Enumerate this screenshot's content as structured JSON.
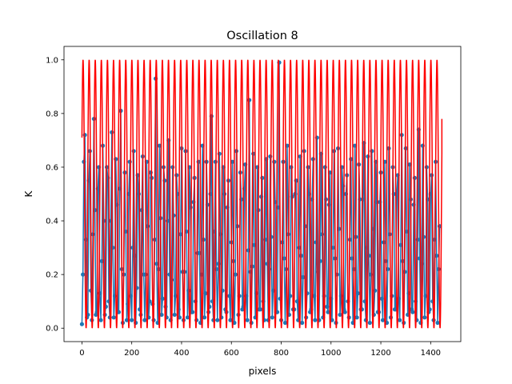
{
  "chart_data": {
    "type": "line",
    "title": "Oscillation 8",
    "xlabel": "pixels",
    "ylabel": "K",
    "xlim": [
      -72,
      1521
    ],
    "ylim": [
      -0.05,
      1.05
    ],
    "xticks": [
      0,
      200,
      400,
      600,
      800,
      1000,
      1200,
      1400
    ],
    "xtick_labels": [
      "0",
      "200",
      "400",
      "600",
      "800",
      "1000",
      "1200",
      "1400"
    ],
    "yticks": [
      0.0,
      0.2,
      0.4,
      0.6,
      0.8,
      1.0
    ],
    "ytick_labels": [
      "0.0",
      "0.2",
      "0.4",
      "0.6",
      "0.8",
      "1.0"
    ],
    "grid": false,
    "series": [
      {
        "role": "measured",
        "style": "line-with-markers",
        "color": "#1f77b4",
        "x_start": 0,
        "x_step": 4,
        "values": [
          0.015,
          0.2,
          0.62,
          0.72,
          0.33,
          0.04,
          0.05,
          0.55,
          0.66,
          0.14,
          0.03,
          0.35,
          0.78,
          0.44,
          0.05,
          0.06,
          0.52,
          0.6,
          0.13,
          0.03,
          0.25,
          0.68,
          0.4,
          0.05,
          0.08,
          0.6,
          0.56,
          0.1,
          0.04,
          0.4,
          0.73,
          0.3,
          0.04,
          0.12,
          0.63,
          0.46,
          0.06,
          0.06,
          0.52,
          0.81,
          0.22,
          0.02,
          0.2,
          0.58,
          0.36,
          0.03,
          0.09,
          0.5,
          0.62,
          0.12,
          0.03,
          0.3,
          0.66,
          0.27,
          0.02,
          0.15,
          0.57,
          0.5,
          0.07,
          0.05,
          0.44,
          0.64,
          0.2,
          0.03,
          0.2,
          0.62,
          0.38,
          0.04,
          0.1,
          0.58,
          0.56,
          0.09,
          0.03,
          0.33,
          0.93,
          0.24,
          0.02,
          0.22,
          0.68,
          0.41,
          0.05,
          0.11,
          0.6,
          0.55,
          0.08,
          0.04,
          0.4,
          0.7,
          0.2,
          0.03,
          0.18,
          0.6,
          0.42,
          0.05,
          0.12,
          0.57,
          0.5,
          0.07,
          0.04,
          0.35,
          0.67,
          0.21,
          0.03,
          0.21,
          0.66,
          0.36,
          0.04,
          0.14,
          0.6,
          0.45,
          0.06,
          0.06,
          0.47,
          0.56,
          0.1,
          0.03,
          0.28,
          0.62,
          0.28,
          0.02,
          0.2,
          0.68,
          0.33,
          0.04,
          0.13,
          0.62,
          0.46,
          0.06,
          0.08,
          0.5,
          0.79,
          0.1,
          0.03,
          0.36,
          0.62,
          0.22,
          0.03,
          0.24,
          0.65,
          0.35,
          0.04,
          0.14,
          0.6,
          0.5,
          0.07,
          0.06,
          0.45,
          0.55,
          0.12,
          0.03,
          0.32,
          0.62,
          0.25,
          0.02,
          0.2,
          0.66,
          0.38,
          0.05,
          0.12,
          0.58,
          0.48,
          0.07,
          0.08,
          0.52,
          0.61,
          0.12,
          0.03,
          0.29,
          0.85,
          0.21,
          0.02,
          0.23,
          0.65,
          0.31,
          0.04,
          0.13,
          0.6,
          0.44,
          0.07,
          0.07,
          0.49,
          0.56,
          0.1,
          0.03,
          0.33,
          0.63,
          0.24,
          0.03,
          0.22,
          0.64,
          0.34,
          0.04,
          0.14,
          0.62,
          0.47,
          0.06,
          0.06,
          0.45,
          0.99,
          0.11,
          0.03,
          0.32,
          0.62,
          0.26,
          0.02,
          0.22,
          0.68,
          0.35,
          0.05,
          0.12,
          0.6,
          0.49,
          0.07,
          0.07,
          0.5,
          0.55,
          0.1,
          0.03,
          0.3,
          0.64,
          0.27,
          0.02,
          0.19,
          0.66,
          0.38,
          0.04,
          0.13,
          0.6,
          0.5,
          0.06,
          0.07,
          0.48,
          0.63,
          0.12,
          0.03,
          0.32,
          0.71,
          0.21,
          0.03,
          0.25,
          0.65,
          0.35,
          0.04,
          0.12,
          0.6,
          0.48,
          0.08,
          0.06,
          0.46,
          0.58,
          0.11,
          0.03,
          0.3,
          0.66,
          0.26,
          0.02,
          0.2,
          0.67,
          0.37,
          0.05,
          0.12,
          0.6,
          0.53,
          0.07,
          0.06,
          0.5,
          0.57,
          0.1,
          0.04,
          0.33,
          0.63,
          0.26,
          0.02,
          0.22,
          0.68,
          0.34,
          0.04,
          0.13,
          0.61,
          0.48,
          0.07,
          0.07,
          0.48,
          0.69,
          0.1,
          0.03,
          0.3,
          0.64,
          0.27,
          0.02,
          0.2,
          0.66,
          0.37,
          0.05,
          0.14,
          0.62,
          0.47,
          0.06,
          0.06,
          0.47,
          0.58,
          0.11,
          0.03,
          0.32,
          0.62,
          0.25,
          0.02,
          0.22,
          0.67,
          0.35,
          0.04,
          0.12,
          0.6,
          0.5,
          0.07,
          0.07,
          0.5,
          0.57,
          0.11,
          0.03,
          0.31,
          0.72,
          0.25,
          0.02,
          0.21,
          0.67,
          0.36,
          0.05,
          0.13,
          0.61,
          0.48,
          0.07,
          0.06,
          0.46,
          0.56,
          0.1,
          0.03,
          0.33,
          0.74,
          0.26,
          0.02,
          0.24,
          0.68,
          0.34,
          0.04,
          0.12,
          0.6,
          0.48,
          0.06,
          0.07,
          0.5,
          0.57,
          0.1,
          0.03,
          0.33,
          0.62,
          0.27,
          0.02,
          0.22,
          0.38
        ]
      },
      {
        "role": "fit",
        "style": "line",
        "color": "#ff0000",
        "x_start": 0,
        "x_end": 1445,
        "amplitude": 0.5,
        "offset": 0.5,
        "period": 24.5,
        "start_value": 0.71,
        "end_value": 0.78,
        "ymin": 0.0,
        "ymax": 1.0
      }
    ]
  }
}
